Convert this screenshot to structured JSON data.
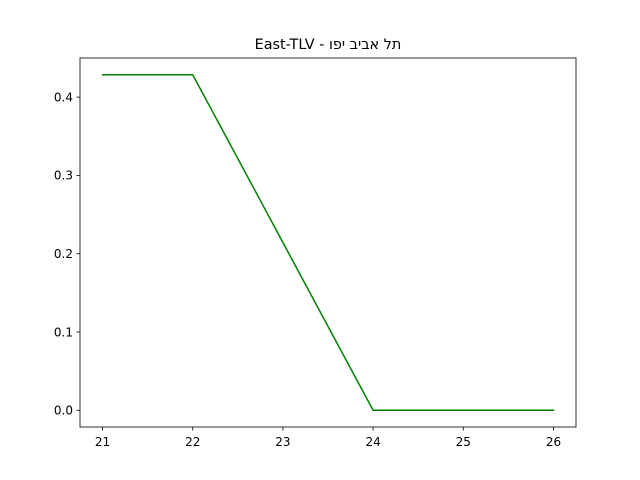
{
  "chart_data": {
    "type": "line",
    "title": "East-TLV - תל אביב יפו",
    "xlabel": "",
    "ylabel": "",
    "x": [
      21,
      22,
      23,
      24,
      25,
      26
    ],
    "series": [
      {
        "values": [
          0.4286,
          0.4286,
          0.2143,
          0.0,
          0.0,
          0.0
        ],
        "color": "#008000"
      }
    ],
    "xlim": [
      20.75,
      26.25
    ],
    "ylim": [
      -0.0214,
      0.45
    ],
    "xticks": [
      21,
      22,
      23,
      24,
      25,
      26
    ],
    "xtick_labels": [
      "21",
      "22",
      "23",
      "24",
      "25",
      "26"
    ],
    "yticks": [
      0.0,
      0.1,
      0.2,
      0.3,
      0.4
    ],
    "ytick_labels": [
      "0.0",
      "0.1",
      "0.2",
      "0.3",
      "0.4"
    ],
    "grid": false,
    "legend": "none"
  }
}
